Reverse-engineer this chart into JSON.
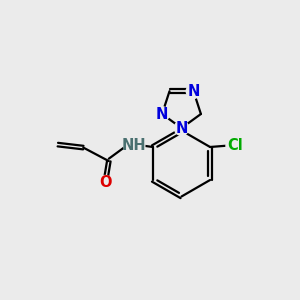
{
  "bg_color": "#ebebeb",
  "bond_color": "#000000",
  "bond_width": 1.6,
  "dbo": 0.07,
  "atom_colors": {
    "N": "#0000dd",
    "O": "#dd0000",
    "Cl": "#00aa00",
    "NH": "#4a7070",
    "C": "#000000"
  },
  "fs": 10.5
}
